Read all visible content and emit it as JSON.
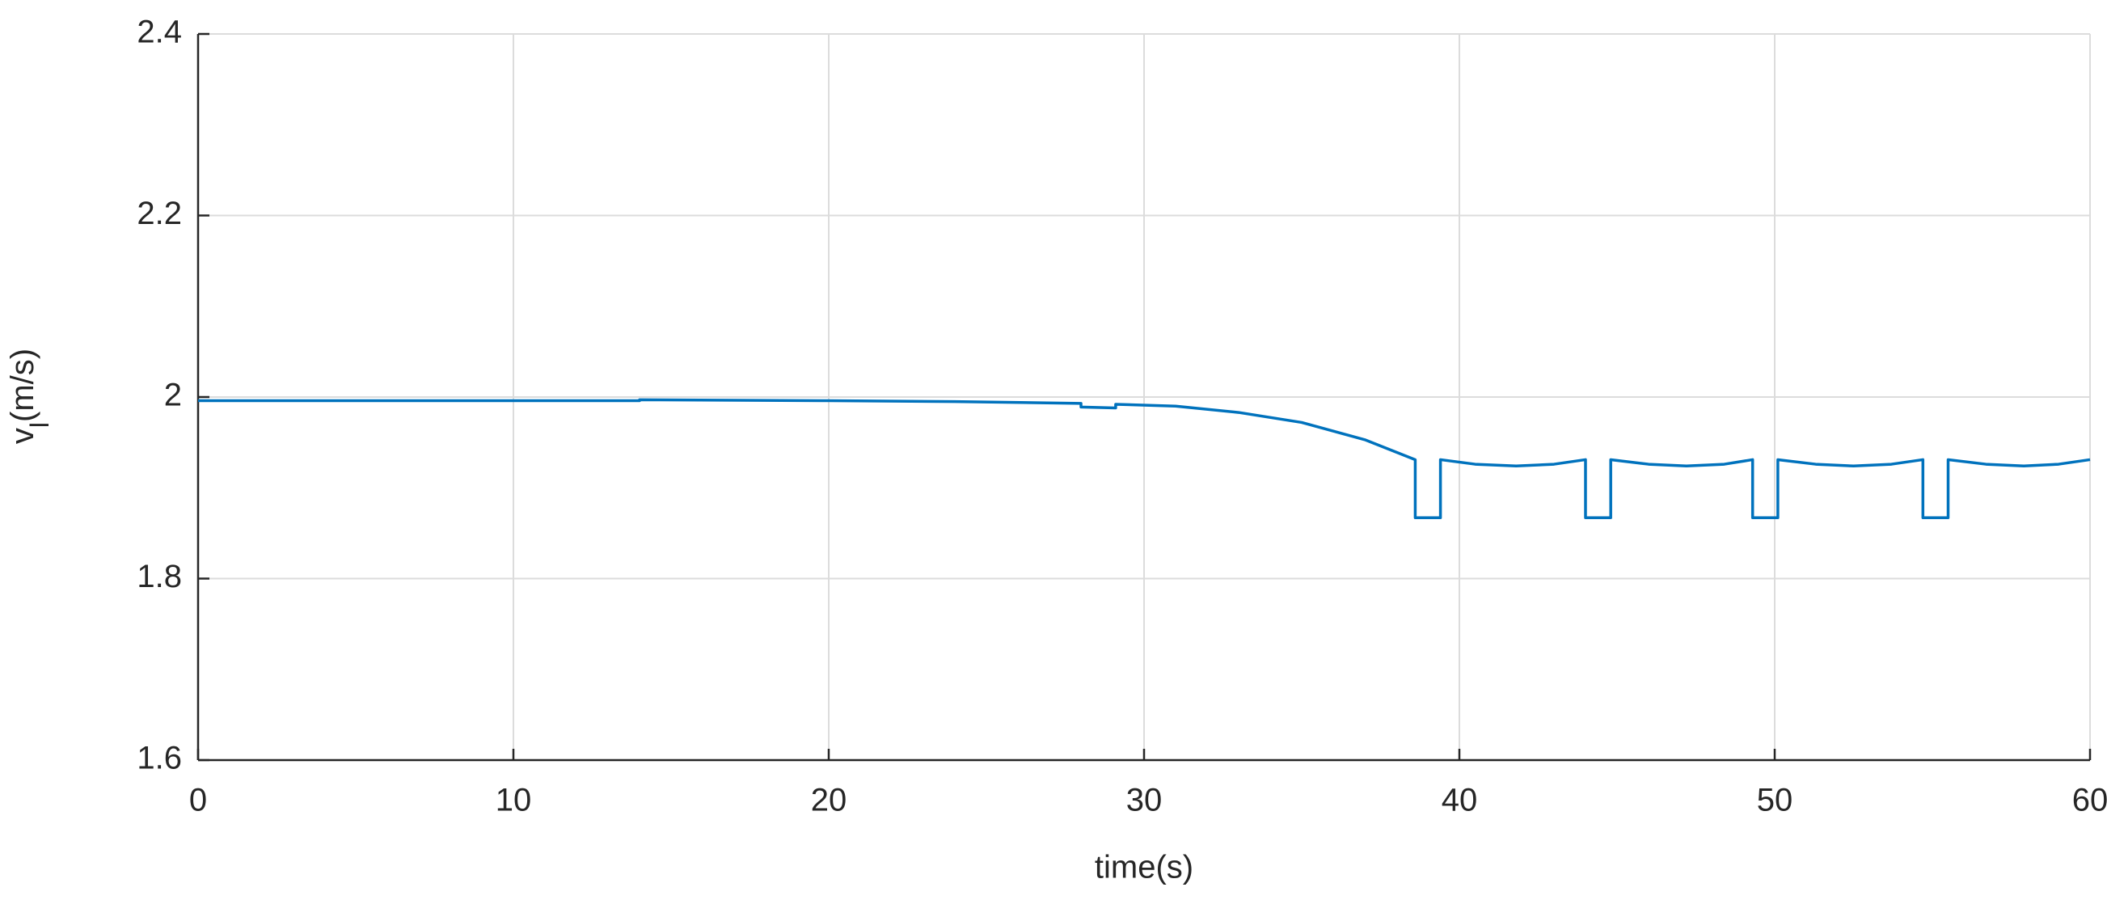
{
  "chart_data": {
    "type": "line",
    "x_label": "time(s)",
    "y_label": "v",
    "y_label_sub": "l",
    "y_label_unit": "(m/s)",
    "x": [
      0,
      14,
      14,
      20,
      24,
      28,
      28,
      29.1,
      29.1,
      31,
      33,
      35,
      37,
      38.6,
      38.6,
      39.4,
      39.4,
      40.5,
      41.8,
      43,
      44,
      44,
      44.8,
      44.8,
      46,
      47.2,
      48.4,
      49.3,
      49.3,
      50.1,
      50.1,
      51.3,
      52.5,
      53.7,
      54.7,
      54.7,
      55.5,
      55.5,
      56.7,
      57.9,
      59,
      60
    ],
    "values": [
      1.996,
      1.996,
      1.997,
      1.996,
      1.995,
      1.993,
      1.989,
      1.988,
      1.992,
      1.99,
      1.983,
      1.972,
      1.953,
      1.931,
      1.867,
      1.867,
      1.931,
      1.926,
      1.924,
      1.926,
      1.931,
      1.867,
      1.867,
      1.931,
      1.926,
      1.924,
      1.926,
      1.931,
      1.867,
      1.867,
      1.931,
      1.926,
      1.924,
      1.926,
      1.931,
      1.867,
      1.867,
      1.931,
      1.926,
      1.924,
      1.926,
      1.931
    ],
    "color": "#0072bd",
    "xlim": [
      0,
      60
    ],
    "xticks": [
      0,
      10,
      20,
      30,
      40,
      50,
      60
    ],
    "ylim": [
      1.6,
      2.4
    ],
    "yticks": [
      1.6,
      1.8,
      2,
      2.2,
      2.4
    ],
    "grid": true
  }
}
